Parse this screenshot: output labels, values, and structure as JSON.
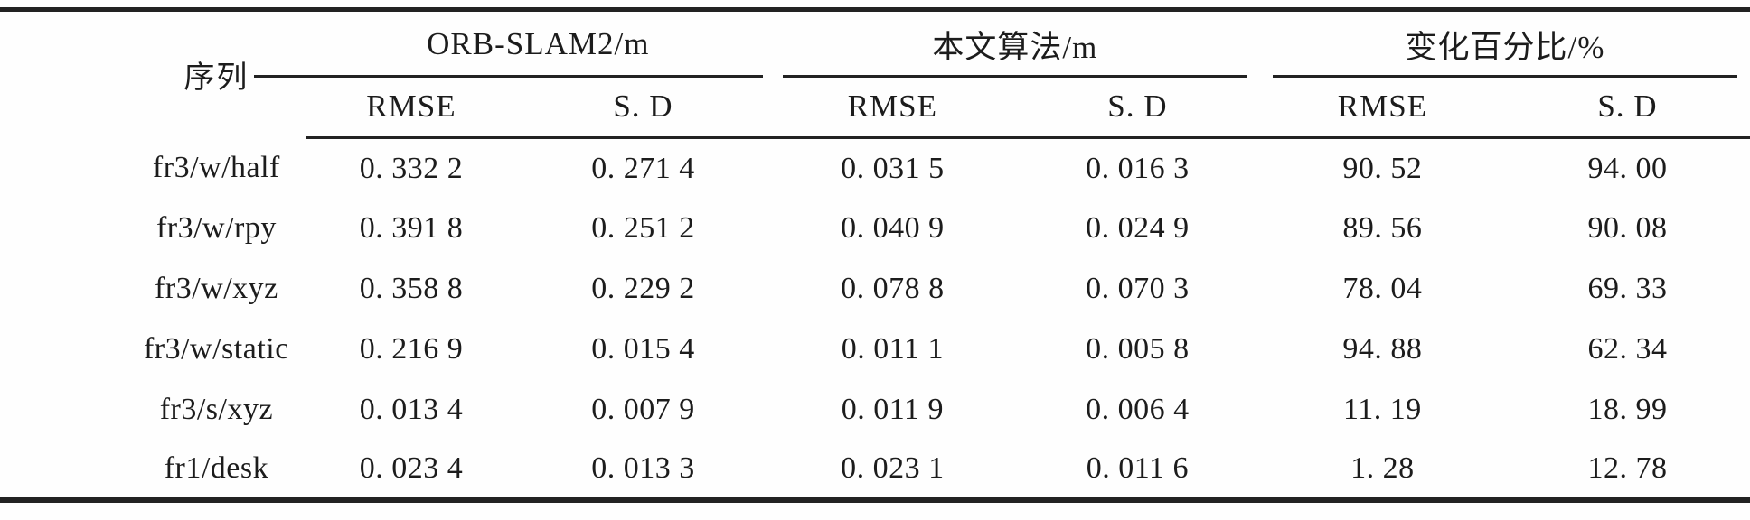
{
  "table": {
    "col1_header": "序列",
    "groups": [
      {
        "label": "ORB-SLAM2/m",
        "sub": [
          "RMSE",
          "S. D"
        ]
      },
      {
        "label": "本文算法/m",
        "sub": [
          "RMSE",
          "S. D"
        ]
      },
      {
        "label": "变化百分比/%",
        "sub": [
          "RMSE",
          "S. D"
        ]
      }
    ],
    "rows": [
      {
        "seq": "fr3/w/half",
        "values": [
          "0. 332 2",
          "0. 271 4",
          "0. 031 5",
          "0. 016 3",
          "90. 52",
          "94. 00"
        ]
      },
      {
        "seq": "fr3/w/rpy",
        "values": [
          "0. 391 8",
          "0. 251 2",
          "0. 040 9",
          "0. 024 9",
          "89. 56",
          "90. 08"
        ]
      },
      {
        "seq": "fr3/w/xyz",
        "values": [
          "0. 358 8",
          "0. 229 2",
          "0. 078 8",
          "0. 070 3",
          "78. 04",
          "69. 33"
        ]
      },
      {
        "seq": "fr3/w/static",
        "values": [
          "0. 216 9",
          "0. 015 4",
          "0. 011 1",
          "0. 005 8",
          "94. 88",
          "62. 34"
        ]
      },
      {
        "seq": "fr3/s/xyz",
        "values": [
          "0. 013 4",
          "0. 007 9",
          "0. 011 9",
          "0. 006 4",
          "11. 19",
          "18. 99"
        ]
      },
      {
        "seq": "fr1/desk",
        "values": [
          "0. 023 4",
          "0. 013 3",
          "0. 023 1",
          "0. 011 6",
          "1. 28",
          "12. 78"
        ]
      }
    ],
    "rule_color": "#222222"
  }
}
